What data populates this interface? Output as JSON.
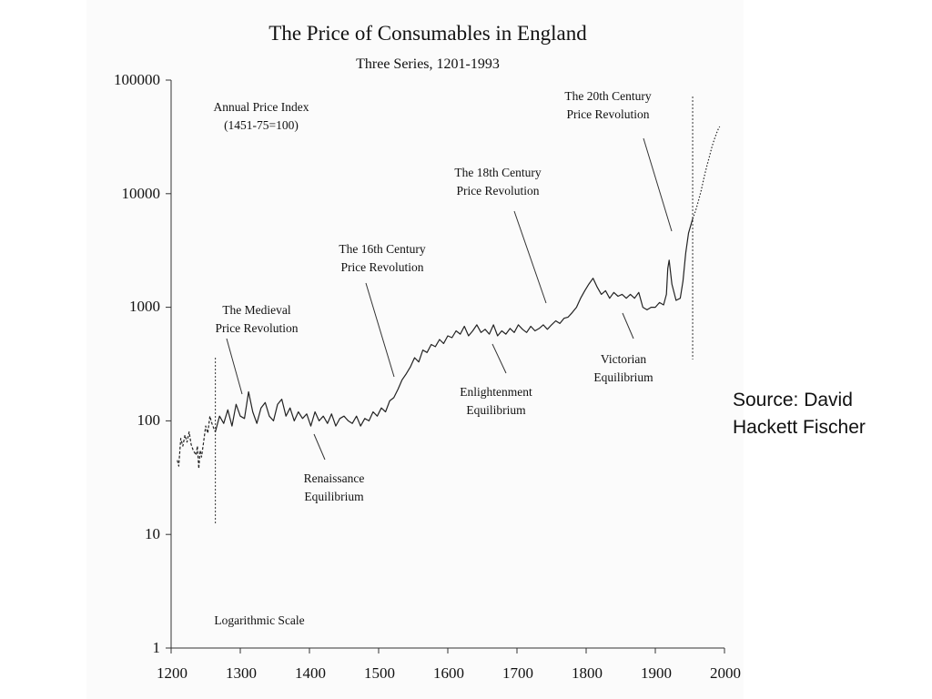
{
  "chart_data": {
    "type": "line",
    "title": "The Price of Consumables in England",
    "subtitle": "Three Series, 1201-1993",
    "y_scale": "log",
    "ylim": [
      1,
      100000
    ],
    "xlim": [
      1200,
      2000
    ],
    "yticks": [
      "100000",
      "10000",
      "1000",
      "100",
      "10",
      "1"
    ],
    "xticks": [
      "1200",
      "1300",
      "1400",
      "1500",
      "1600",
      "1700",
      "1800",
      "1900",
      "2000"
    ],
    "index_label": "Annual Price Index",
    "index_base": "(1451-75=100)",
    "scale_note": "Logarithmic Scale",
    "breaks": [
      1264,
      1954
    ],
    "series": [
      {
        "style": "dashed",
        "x": [
          1209,
          1211,
          1214,
          1217,
          1220,
          1223,
          1226,
          1229,
          1232,
          1236,
          1238,
          1240,
          1242,
          1244,
          1247,
          1250,
          1253,
          1256,
          1259,
          1262,
          1264
        ],
        "values": [
          45,
          40,
          70,
          60,
          75,
          65,
          80,
          62,
          55,
          50,
          60,
          38,
          55,
          48,
          65,
          90,
          78,
          110,
          95,
          85,
          80
        ]
      },
      {
        "style": "solid",
        "x": [
          1264,
          1270,
          1276,
          1282,
          1288,
          1294,
          1300,
          1306,
          1312,
          1318,
          1324,
          1330,
          1336,
          1342,
          1348,
          1354,
          1360,
          1366,
          1372,
          1378,
          1384,
          1390,
          1396,
          1402,
          1408,
          1414,
          1420,
          1426,
          1432,
          1438,
          1444,
          1450,
          1456,
          1462,
          1468,
          1474,
          1480,
          1486,
          1492,
          1498,
          1504,
          1510,
          1516,
          1522,
          1528,
          1534,
          1540,
          1546,
          1552,
          1558,
          1564,
          1570,
          1576,
          1582,
          1588,
          1594,
          1600,
          1606,
          1612,
          1618,
          1624,
          1630,
          1636,
          1642,
          1648,
          1654,
          1660,
          1666,
          1672,
          1678,
          1684,
          1690,
          1696,
          1702,
          1708,
          1714,
          1720,
          1726,
          1732,
          1738,
          1744,
          1750,
          1756,
          1762,
          1768,
          1774,
          1780,
          1786,
          1792,
          1798,
          1804,
          1810,
          1816,
          1822,
          1828,
          1834,
          1840,
          1846,
          1852,
          1858,
          1864,
          1870,
          1876,
          1882,
          1888,
          1894,
          1900,
          1906,
          1912,
          1916,
          1918,
          1920,
          1924,
          1930,
          1936,
          1940,
          1944,
          1948,
          1954
        ],
        "values": [
          80,
          110,
          95,
          125,
          90,
          140,
          110,
          105,
          180,
          120,
          95,
          130,
          145,
          110,
          100,
          140,
          155,
          110,
          130,
          100,
          120,
          105,
          115,
          90,
          120,
          100,
          110,
          95,
          115,
          90,
          105,
          110,
          100,
          95,
          110,
          90,
          105,
          100,
          120,
          110,
          130,
          120,
          150,
          160,
          190,
          230,
          260,
          300,
          360,
          330,
          420,
          400,
          470,
          450,
          520,
          480,
          560,
          540,
          620,
          580,
          680,
          560,
          620,
          700,
          600,
          640,
          580,
          700,
          560,
          620,
          580,
          650,
          600,
          700,
          640,
          600,
          680,
          620,
          650,
          700,
          640,
          700,
          760,
          720,
          800,
          820,
          900,
          1000,
          1200,
          1400,
          1600,
          1800,
          1500,
          1300,
          1400,
          1200,
          1350,
          1250,
          1300,
          1200,
          1300,
          1200,
          1350,
          1000,
          950,
          1000,
          1000,
          1100,
          1050,
          1300,
          2200,
          2600,
          1600,
          1150,
          1200,
          1700,
          3000,
          4500,
          6000
        ]
      },
      {
        "style": "dotted",
        "x": [
          1954,
          1958,
          1962,
          1966,
          1970,
          1974,
          1978,
          1982,
          1986,
          1990,
          1993
        ],
        "values": [
          6000,
          7000,
          8500,
          10500,
          13500,
          17000,
          21000,
          26000,
          31000,
          36000,
          39000
        ]
      }
    ],
    "annotations": [
      {
        "line1": "The Medieval",
        "line2": "Price Revolution"
      },
      {
        "line1": "Renaissance",
        "line2": "Equilibrium"
      },
      {
        "line1": "The 16th Century",
        "line2": "Price Revolution"
      },
      {
        "line1": "Enlightenment",
        "line2": "Equilibrium"
      },
      {
        "line1": "The 18th Century",
        "line2": "Price Revolution"
      },
      {
        "line1": "Victorian",
        "line2": "Equilibrium"
      },
      {
        "line1": "The 20th Century",
        "line2": "Price Revolution"
      }
    ]
  },
  "source": {
    "line1": "Source: David",
    "line2": "Hackett Fischer"
  }
}
